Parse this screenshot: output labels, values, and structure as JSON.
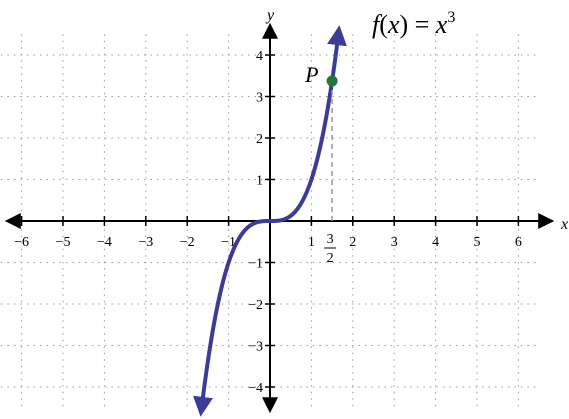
{
  "chart_data": {
    "type": "line",
    "title": "",
    "xlabel": "x",
    "ylabel": "y",
    "xlim": [
      -6.5,
      6.5
    ],
    "ylim": [
      -4.5,
      4.5
    ],
    "grid": true,
    "x_ticks": [
      -6,
      -5,
      -4,
      -3,
      -2,
      -1,
      1,
      2,
      3,
      4,
      5,
      6
    ],
    "x_tick_labels": [
      "−6",
      "−5",
      "−4",
      "−3",
      "−2",
      "−1",
      "1",
      "2",
      "3",
      "4",
      "5",
      "6"
    ],
    "y_ticks": [
      -4,
      -3,
      -2,
      -1,
      1,
      2,
      3,
      4
    ],
    "y_tick_labels": [
      "−4",
      "−3",
      "−2",
      "−1",
      "1",
      "2",
      "3",
      "4"
    ],
    "function_label": {
      "f": "f",
      "open_paren": "(",
      "var": "x",
      "close_paren": ")",
      "equals": " = ",
      "base": "x",
      "exponent": "3"
    },
    "series": [
      {
        "expression": "x^3",
        "x_range": [
          -1.66,
          1.66
        ],
        "color": "#3b3b9a"
      }
    ],
    "point": {
      "label": "P",
      "x": 1.5,
      "y": 3.375,
      "x_label_numerator": "3",
      "x_label_denominator": "2",
      "color": "#1e7a3a"
    }
  }
}
